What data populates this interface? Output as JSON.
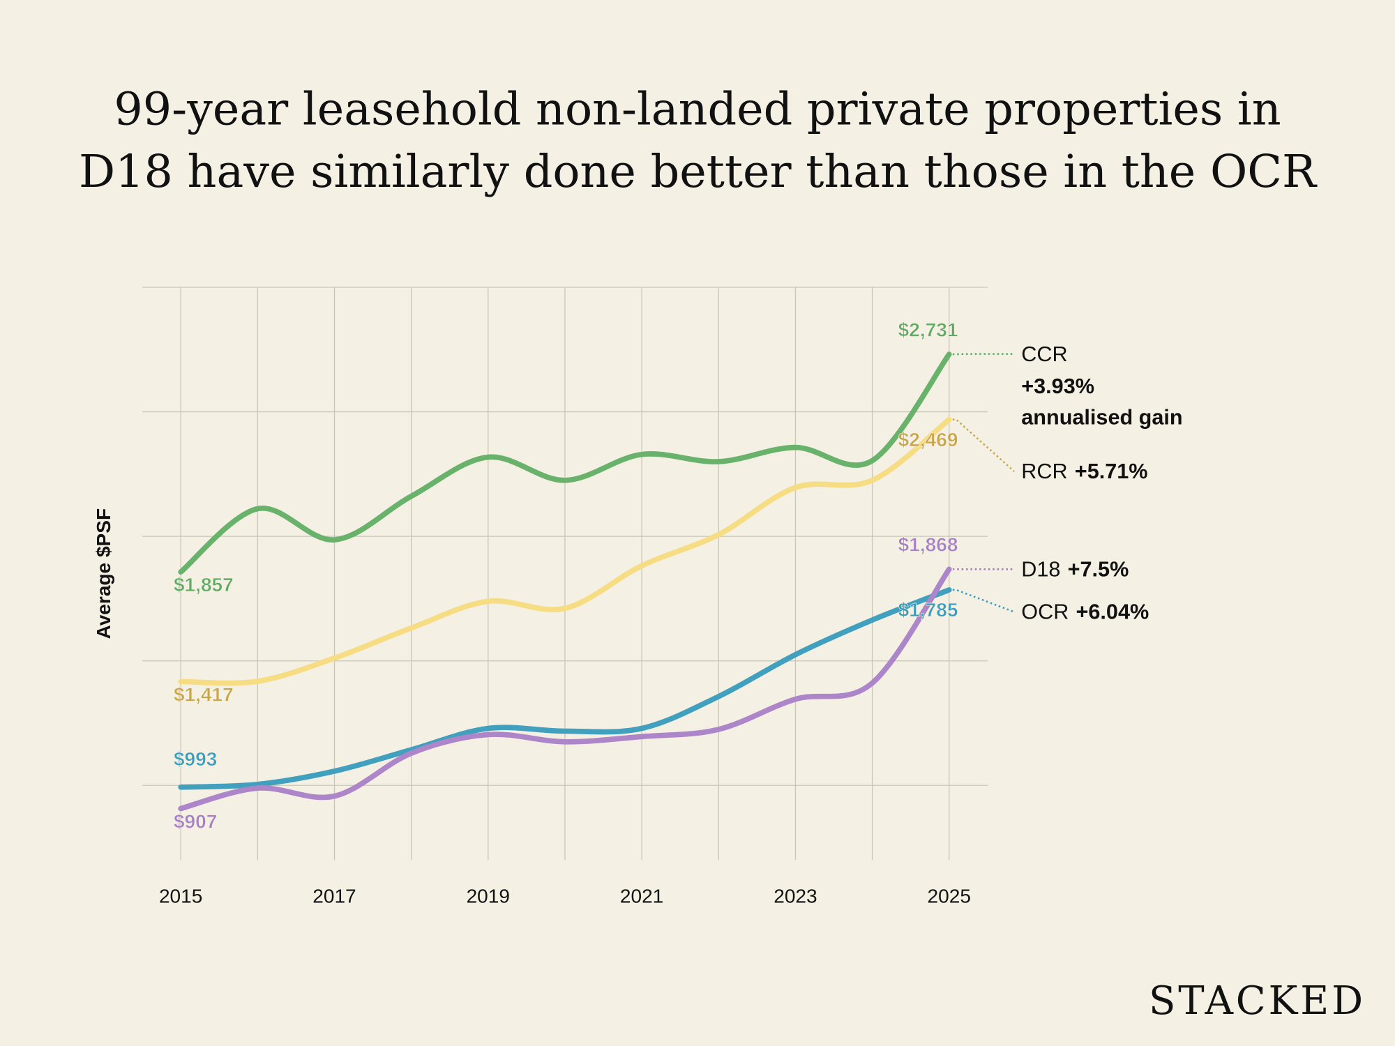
{
  "chart_data": {
    "type": "line",
    "title": [
      "99-year leasehold non-landed private properties in",
      "D18 have similarly done better than those in the OCR"
    ],
    "y_label": "Average $PSF",
    "brand": "STACKED",
    "x": [
      2015,
      2016,
      2017,
      2018,
      2019,
      2020,
      2021,
      2022,
      2023,
      2024,
      2025
    ],
    "xlim": [
      2014.5,
      2025.5
    ],
    "xticks": [
      2015,
      2017,
      2019,
      2021,
      2023,
      2025
    ],
    "ylim": [
      700,
      3000
    ],
    "yticks": [
      1000,
      1500,
      2000,
      2500,
      3000
    ],
    "grid": true,
    "series": [
      {
        "name": "CCR",
        "gain": "+3.93%",
        "gain_note": "annualised gain",
        "color": "#69b26b",
        "label_color": "#5fab62",
        "values": [
          1857,
          2111,
          1986,
          2161,
          2318,
          2225,
          2329,
          2300,
          2357,
          2304,
          2731
        ],
        "value_labels": [
          "$1,857",
          null,
          null,
          null,
          null,
          null,
          null,
          null,
          null,
          null,
          "$2,731"
        ]
      },
      {
        "name": "RCR",
        "gain": "+5.71%",
        "color": "#f6dc83",
        "label_color": "#c9a548",
        "values": [
          1417,
          1418,
          1511,
          1632,
          1739,
          1711,
          1882,
          2007,
          2196,
          2225,
          2469
        ],
        "value_labels": [
          "$1,417",
          null,
          null,
          null,
          null,
          null,
          null,
          null,
          null,
          null,
          "$2,469"
        ]
      },
      {
        "name": "OCR",
        "gain": "+6.04%",
        "color": "#42a0bf",
        "label_color": "#3b9dbd",
        "values": [
          993,
          1004,
          1057,
          1143,
          1229,
          1218,
          1229,
          1357,
          1525,
          1664,
          1785
        ],
        "value_labels": [
          "$993",
          null,
          null,
          null,
          null,
          null,
          null,
          null,
          null,
          null,
          "$1,785"
        ]
      },
      {
        "name": "D18",
        "gain": "+7.5%",
        "color": "#ad86c9",
        "label_color": "#a77fc6",
        "values": [
          907,
          989,
          957,
          1129,
          1204,
          1175,
          1196,
          1225,
          1346,
          1411,
          1868
        ],
        "value_labels": [
          "$907",
          null,
          null,
          null,
          null,
          null,
          null,
          null,
          null,
          null,
          "$1,868"
        ]
      }
    ]
  }
}
